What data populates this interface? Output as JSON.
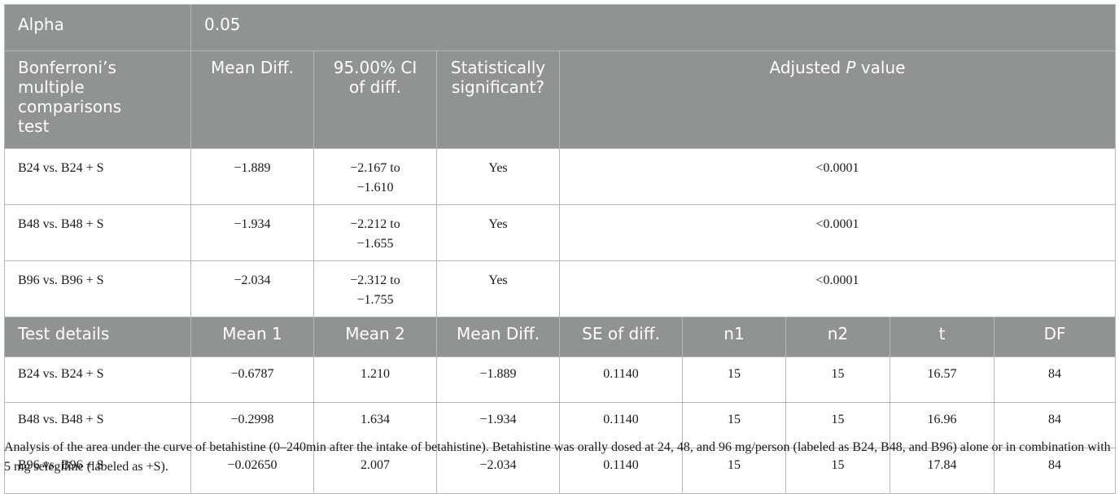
{
  "alpha_row": {
    "label": "Alpha",
    "value": "0.05"
  },
  "comparisons_header": {
    "test": [
      "Bonferroni’s",
      "multiple",
      "comparisons",
      "test"
    ],
    "mean_diff": "Mean Diff.",
    "ci": [
      "95.00% CI",
      "of diff."
    ],
    "significant": [
      "Statistically",
      "significant?"
    ],
    "adjusted_p_prefix": "Adjusted ",
    "adjusted_p_italic": "P",
    "adjusted_p_suffix": " value"
  },
  "comparisons": [
    {
      "test": "B24 vs. B24 + S",
      "mean_diff": "−1.889",
      "ci_low": "−2.167 to",
      "ci_high": "−1.610",
      "significant": "Yes",
      "p": "<0.0001"
    },
    {
      "test": "B48 vs. B48 + S",
      "mean_diff": "−1.934",
      "ci_low": "−2.212 to",
      "ci_high": "−1.655",
      "significant": "Yes",
      "p": "<0.0001"
    },
    {
      "test": "B96 vs. B96 + S",
      "mean_diff": "−2.034",
      "ci_low": "−2.312 to",
      "ci_high": "−1.755",
      "significant": "Yes",
      "p": "<0.0001"
    }
  ],
  "details_header": {
    "test": "Test details",
    "mean1": "Mean 1",
    "mean2": "Mean 2",
    "mean_diff": "Mean Diff.",
    "se": "SE of diff.",
    "n1": "n1",
    "n2": "n2",
    "t": "t",
    "df": "DF"
  },
  "details": [
    {
      "test": "B24 vs. B24 + S",
      "mean1": "−0.6787",
      "mean2": "1.210",
      "mean_diff": "−1.889",
      "se": "0.1140",
      "n1": "15",
      "n2": "15",
      "t": "16.57",
      "df": "84"
    },
    {
      "test": "B48 vs. B48 + S",
      "mean1": "−0.2998",
      "mean2": "1.634",
      "mean_diff": "−1.934",
      "se": "0.1140",
      "n1": "15",
      "n2": "15",
      "t": "16.96",
      "df": "84"
    },
    {
      "test": "B96 vs. B96 + S",
      "mean1": "−0.02650",
      "mean2": "2.007",
      "mean_diff": "−2.034",
      "se": "0.1140",
      "n1": "15",
      "n2": "15",
      "t": "17.84",
      "df": "84"
    }
  ],
  "caption": "Analysis of the area under the curve of betahistine (0–240min after the intake of betahistine). Betahistine was orally dosed at 24, 48, and 96 mg/person (labeled as B24, B48, and B96) alone or in combination with 5 mg selegiline (labeled as +S)."
}
